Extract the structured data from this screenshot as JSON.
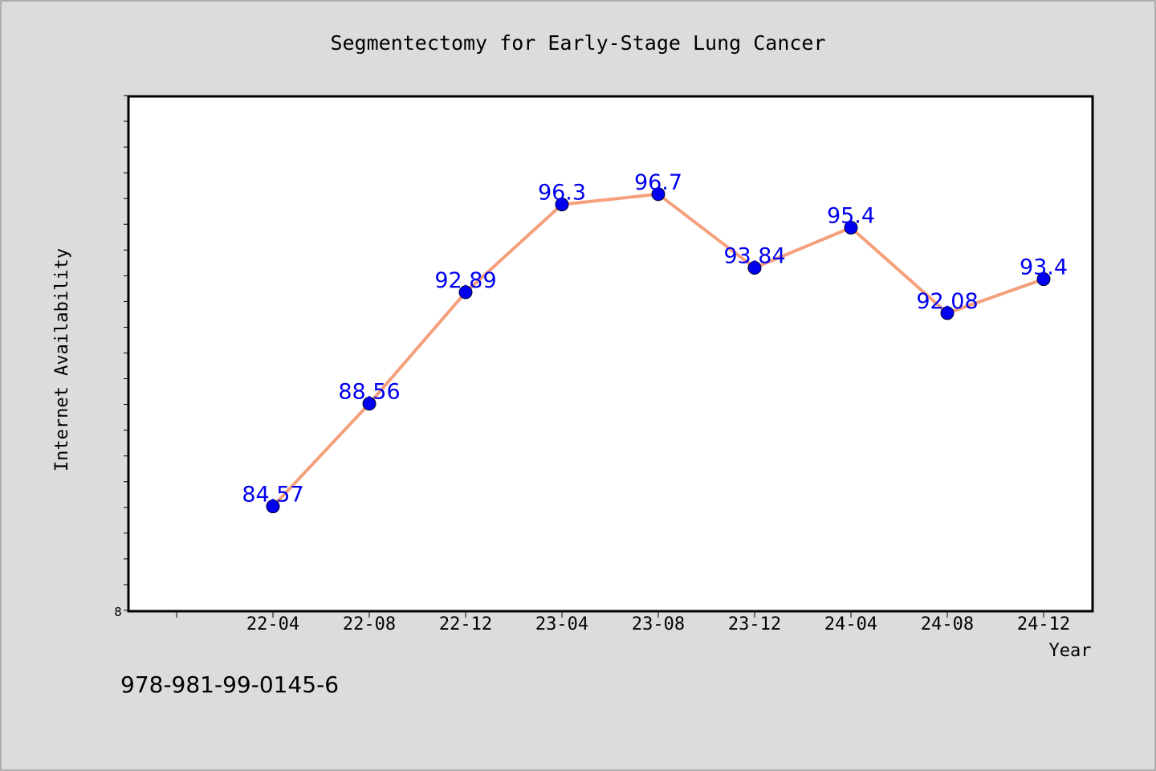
{
  "chart_data": {
    "type": "line",
    "title": "Segmentectomy for Early-Stage Lung Cancer",
    "xlabel": "Year",
    "ylabel": "Internet Availability",
    "categories": [
      "22-04",
      "22-08",
      "22-12",
      "23-04",
      "23-08",
      "23-12",
      "24-04",
      "24-08",
      "24-12"
    ],
    "series": [
      {
        "values": [
          84.57,
          88.56,
          92.89,
          96.3,
          96.7,
          93.84,
          95.4,
          92.08,
          93.4
        ],
        "labels": [
          "84.57",
          "88.56",
          "92.89",
          "96.3",
          "96.7",
          "93.84",
          "95.4",
          "92.08",
          "93.4"
        ],
        "line_color": "#f4a07c",
        "marker_color": "#0000ee",
        "label_color": "#0000ee"
      }
    ],
    "ylim": [
      80.5,
      100.5
    ],
    "ytick_labels": [
      "8"
    ],
    "grid": false
  },
  "footer": {
    "isbn": "978-981-99-0145-6"
  }
}
